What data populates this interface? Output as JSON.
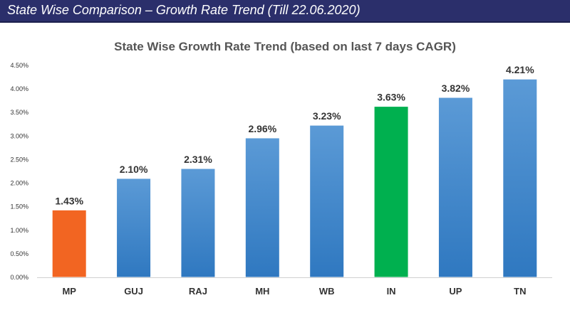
{
  "header": {
    "title": "State Wise Comparison – Growth Rate Trend (Till 22.06.2020)"
  },
  "chart_data": {
    "type": "bar",
    "title": "State Wise Growth Rate Trend (based on last 7 days CAGR)",
    "xlabel": "",
    "ylabel": "",
    "categories": [
      "MP",
      "GUJ",
      "RAJ",
      "MH",
      "WB",
      "IN",
      "UP",
      "TN"
    ],
    "values": [
      1.43,
      2.1,
      2.31,
      2.96,
      3.23,
      3.63,
      3.82,
      4.21
    ],
    "data_labels": [
      "1.43%",
      "2.10%",
      "2.31%",
      "2.96%",
      "3.23%",
      "3.63%",
      "3.82%",
      "4.21%"
    ],
    "ylim": [
      0,
      4.5
    ],
    "yticks": [
      0,
      0.5,
      1.0,
      1.5,
      2.0,
      2.5,
      3.0,
      3.5,
      4.0,
      4.5
    ],
    "ytick_labels": [
      "0.00%",
      "0.50%",
      "1.00%",
      "1.50%",
      "2.00%",
      "2.50%",
      "3.00%",
      "3.50%",
      "4.00%",
      "4.50%"
    ],
    "grid": false,
    "bar_colors": [
      "#f26522",
      "#3a7fc4",
      "#3a7fc4",
      "#3a7fc4",
      "#3a7fc4",
      "#00b04f",
      "#3a7fc4",
      "#3a7fc4"
    ]
  }
}
